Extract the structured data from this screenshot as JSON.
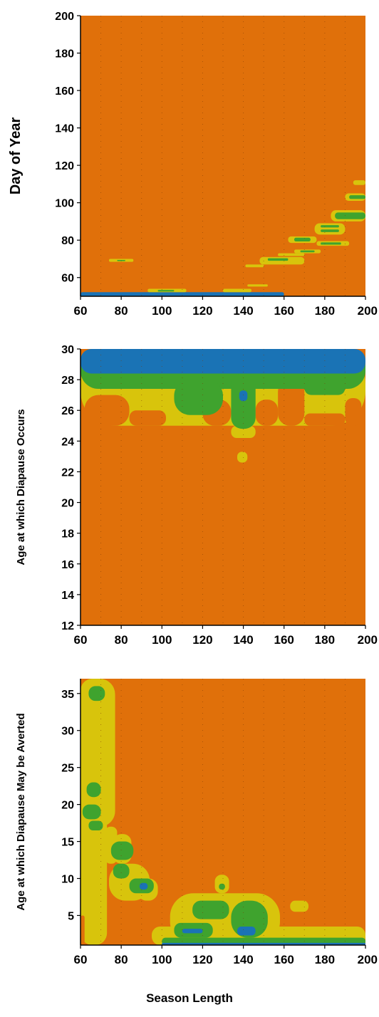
{
  "colors": {
    "background_level": "#e0700a",
    "level_1": "#d8c40c",
    "level_2": "#3fa32e",
    "level_3": "#1a73b5",
    "level_4": "#1d8ea0"
  },
  "shared_xlabel": "Season Length",
  "chart_data": [
    {
      "type": "heatmap",
      "title": "",
      "xlabel": "",
      "ylabel": "Day of Year",
      "xlim": [
        60,
        200
      ],
      "ylim": [
        50,
        200
      ],
      "x_ticks": [
        "60",
        "80",
        "100",
        "120",
        "140",
        "160",
        "180",
        "200"
      ],
      "y_ticks": [
        "60",
        "80",
        "100",
        "120",
        "140",
        "160",
        "180",
        "200"
      ],
      "fill": "level_0",
      "regions": [
        {
          "level": 3,
          "x": [
            60,
            160
          ],
          "y": [
            50,
            52.2
          ]
        },
        {
          "level": 1,
          "x": [
            93,
            112
          ],
          "y": [
            52.2,
            54
          ]
        },
        {
          "level": 2,
          "x": [
            98,
            106
          ],
          "y": [
            52.5,
            53.4
          ]
        },
        {
          "level": 1,
          "x": [
            130,
            144
          ],
          "y": [
            52.2,
            54
          ]
        },
        {
          "level": 1,
          "x": [
            142,
            152
          ],
          "y": [
            55.2,
            56.4
          ]
        },
        {
          "level": 1,
          "x": [
            74,
            86
          ],
          "y": [
            68.4,
            70
          ]
        },
        {
          "level": 2,
          "x": [
            78,
            82
          ],
          "y": [
            68.8,
            69.4
          ]
        },
        {
          "level": 1,
          "x": [
            141,
            150
          ],
          "y": [
            65.5,
            67
          ]
        },
        {
          "level": 1,
          "x": [
            148,
            170
          ],
          "y": [
            67,
            71
          ]
        },
        {
          "level": 2,
          "x": [
            152,
            162
          ],
          "y": [
            69,
            70.3
          ]
        },
        {
          "level": 1,
          "x": [
            157,
            170
          ],
          "y": [
            71.5,
            73
          ]
        },
        {
          "level": 1,
          "x": [
            165,
            178
          ],
          "y": [
            73,
            75
          ]
        },
        {
          "level": 2,
          "x": [
            168,
            175
          ],
          "y": [
            73.5,
            74.5
          ]
        },
        {
          "level": 1,
          "x": [
            162,
            176
          ],
          "y": [
            78.5,
            82
          ]
        },
        {
          "level": 2,
          "x": [
            165,
            173
          ],
          "y": [
            79.3,
            81.3
          ]
        },
        {
          "level": 1,
          "x": [
            176,
            192
          ],
          "y": [
            77,
            79.5
          ]
        },
        {
          "level": 2,
          "x": [
            178,
            188
          ],
          "y": [
            77.6,
            78.8
          ]
        },
        {
          "level": 1,
          "x": [
            175,
            190
          ],
          "y": [
            83,
            89
          ]
        },
        {
          "level": 2,
          "x": [
            178,
            187
          ],
          "y": [
            84.3,
            85.7
          ]
        },
        {
          "level": 2,
          "x": [
            178,
            187
          ],
          "y": [
            86.8,
            88
          ]
        },
        {
          "level": 1,
          "x": [
            183,
            200
          ],
          "y": [
            90,
            96
          ]
        },
        {
          "level": 2,
          "x": [
            185,
            200
          ],
          "y": [
            91.2,
            94.8
          ]
        },
        {
          "level": 1,
          "x": [
            190,
            200
          ],
          "y": [
            101,
            105
          ]
        },
        {
          "level": 2,
          "x": [
            192,
            200
          ],
          "y": [
            102,
            104
          ]
        },
        {
          "level": 1,
          "x": [
            194,
            200
          ],
          "y": [
            109.5,
            112
          ]
        }
      ]
    },
    {
      "type": "heatmap",
      "title": "",
      "xlabel": "",
      "ylabel": "Age at which Diapause Occurs",
      "xlim": [
        60,
        200
      ],
      "ylim": [
        12,
        30
      ],
      "x_ticks": [
        "60",
        "80",
        "100",
        "120",
        "140",
        "160",
        "180",
        "200"
      ],
      "y_ticks": [
        "12",
        "14",
        "16",
        "18",
        "20",
        "22",
        "24",
        "26",
        "28",
        "30"
      ],
      "fill": "level_0",
      "regions": [
        {
          "level": 1,
          "x": [
            60,
            200
          ],
          "y": [
            25,
            30
          ]
        },
        {
          "level": 1,
          "x": [
            134,
            146
          ],
          "y": [
            24.2,
            25
          ]
        },
        {
          "level": 1,
          "x": [
            137,
            142
          ],
          "y": [
            22.6,
            23.3
          ]
        },
        {
          "level": 0,
          "x": [
            62,
            84
          ],
          "y": [
            25,
            27
          ]
        },
        {
          "level": 0,
          "x": [
            84,
            102
          ],
          "y": [
            25,
            26
          ]
        },
        {
          "level": 0,
          "x": [
            120,
            134
          ],
          "y": [
            25,
            26.7
          ]
        },
        {
          "level": 0,
          "x": [
            146,
            157
          ],
          "y": [
            25,
            26.7
          ]
        },
        {
          "level": 0,
          "x": [
            157,
            170
          ],
          "y": [
            25,
            28
          ]
        },
        {
          "level": 0,
          "x": [
            170,
            190
          ],
          "y": [
            25,
            25.8
          ]
        },
        {
          "level": 0,
          "x": [
            190,
            198
          ],
          "y": [
            25,
            26.8
          ]
        },
        {
          "level": 2,
          "x": [
            60,
            200
          ],
          "y": [
            27.4,
            30
          ]
        },
        {
          "level": 2,
          "x": [
            84,
            106
          ],
          "y": [
            27.4,
            28
          ]
        },
        {
          "level": 2,
          "x": [
            106,
            130
          ],
          "y": [
            25.7,
            28
          ]
        },
        {
          "level": 2,
          "x": [
            134,
            146
          ],
          "y": [
            24.8,
            28.4
          ]
        },
        {
          "level": 2,
          "x": [
            170,
            190
          ],
          "y": [
            27,
            28
          ]
        },
        {
          "level": 3,
          "x": [
            60,
            200
          ],
          "y": [
            28.4,
            30
          ]
        },
        {
          "level": 3,
          "x": [
            138,
            142
          ],
          "y": [
            26.6,
            27.3
          ]
        }
      ]
    },
    {
      "type": "heatmap",
      "title": "",
      "xlabel": "Season Length",
      "ylabel": "Age at which Diapause May be Averted",
      "xlim": [
        60,
        200
      ],
      "ylim": [
        1,
        37
      ],
      "x_ticks": [
        "60",
        "80",
        "100",
        "120",
        "140",
        "160",
        "180",
        "200"
      ],
      "y_ticks": [
        "5",
        "10",
        "15",
        "20",
        "25",
        "30",
        "35"
      ],
      "fill": "level_0",
      "regions": [
        {
          "level": 1,
          "x": [
            60,
            73
          ],
          "y": [
            1,
            37
          ]
        },
        {
          "level": 1,
          "x": [
            60,
            77
          ],
          "y": [
            17,
            37
          ]
        },
        {
          "level": 0,
          "x": [
            60,
            62
          ],
          "y": [
            1,
            5
          ]
        },
        {
          "level": 1,
          "x": [
            72,
            78
          ],
          "y": [
            12,
            17
          ]
        },
        {
          "level": 1,
          "x": [
            76,
            85
          ],
          "y": [
            12,
            16
          ]
        },
        {
          "level": 1,
          "x": [
            74,
            94
          ],
          "y": [
            7,
            12
          ]
        },
        {
          "level": 1,
          "x": [
            88,
            98
          ],
          "y": [
            7,
            10
          ]
        },
        {
          "level": 2,
          "x": [
            64,
            72
          ],
          "y": [
            34,
            36
          ]
        },
        {
          "level": 2,
          "x": [
            63,
            70
          ],
          "y": [
            21,
            23
          ]
        },
        {
          "level": 2,
          "x": [
            61,
            70
          ],
          "y": [
            18,
            20
          ]
        },
        {
          "level": 2,
          "x": [
            64,
            71
          ],
          "y": [
            16.5,
            17.8
          ]
        },
        {
          "level": 2,
          "x": [
            75,
            86
          ],
          "y": [
            12.5,
            15
          ]
        },
        {
          "level": 2,
          "x": [
            76,
            84
          ],
          "y": [
            10,
            12
          ]
        },
        {
          "level": 2,
          "x": [
            84,
            96
          ],
          "y": [
            8,
            10
          ]
        },
        {
          "level": 3,
          "x": [
            89,
            93
          ],
          "y": [
            8.5,
            9.4
          ]
        },
        {
          "level": 1,
          "x": [
            95,
            200
          ],
          "y": [
            1,
            3.5
          ]
        },
        {
          "level": 1,
          "x": [
            104,
            158
          ],
          "y": [
            1,
            8
          ]
        },
        {
          "level": 1,
          "x": [
            126,
            133
          ],
          "y": [
            8,
            10.5
          ]
        },
        {
          "level": 1,
          "x": [
            163,
            172
          ],
          "y": [
            5.5,
            7
          ]
        },
        {
          "level": 2,
          "x": [
            100,
            200
          ],
          "y": [
            1,
            2
          ]
        },
        {
          "level": 2,
          "x": [
            106,
            125
          ],
          "y": [
            2,
            4
          ]
        },
        {
          "level": 2,
          "x": [
            115,
            133
          ],
          "y": [
            4.5,
            7
          ]
        },
        {
          "level": 2,
          "x": [
            134,
            152
          ],
          "y": [
            2,
            7
          ]
        },
        {
          "level": 2,
          "x": [
            128,
            131
          ],
          "y": [
            8.5,
            9.3
          ]
        },
        {
          "level": 3,
          "x": [
            100,
            200
          ],
          "y": [
            1,
            1.3
          ]
        },
        {
          "level": 3,
          "x": [
            110,
            120
          ],
          "y": [
            2.6,
            3.2
          ]
        },
        {
          "level": 3,
          "x": [
            137,
            146
          ],
          "y": [
            2.3,
            3.5
          ]
        }
      ]
    }
  ]
}
